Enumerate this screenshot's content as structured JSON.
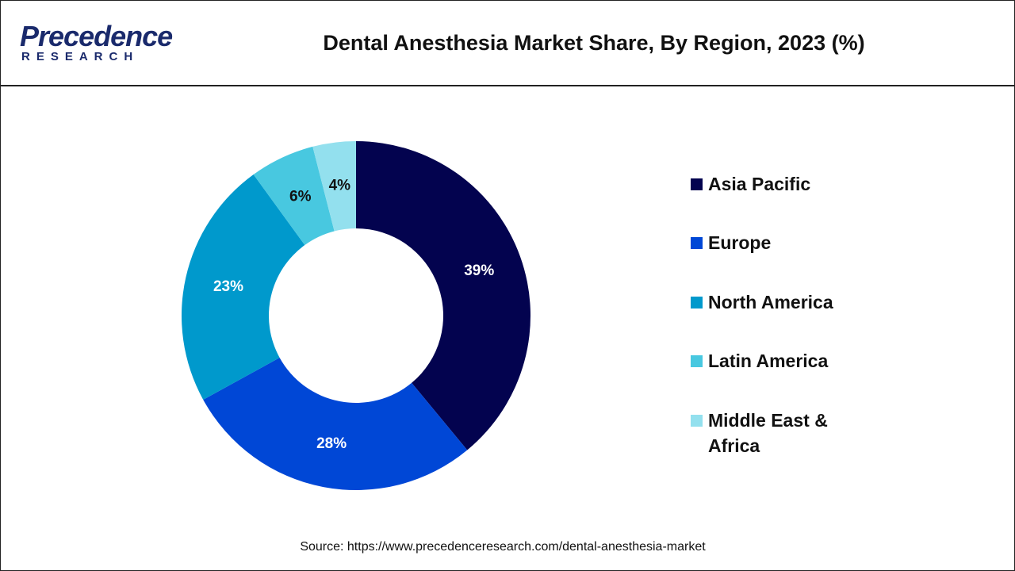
{
  "logo": {
    "name": "Precedence",
    "sub": "RESEARCH"
  },
  "chart_data": {
    "type": "donut",
    "title": "Dental Anesthesia Market Share, By Region, 2023 (%)",
    "categories": [
      "Asia Pacific",
      "Europe",
      "North America",
      "Latin America",
      "Middle East & Africa"
    ],
    "values": [
      39,
      28,
      23,
      6,
      4
    ],
    "value_labels": [
      "39%",
      "28%",
      "23%",
      "6%",
      "4%"
    ],
    "colors": [
      "#03034f",
      "#0047d6",
      "#0099cc",
      "#48c8e0",
      "#93e0ee"
    ],
    "source": "Source: https://www.precedenceresearch.com/dental-anesthesia-market"
  }
}
